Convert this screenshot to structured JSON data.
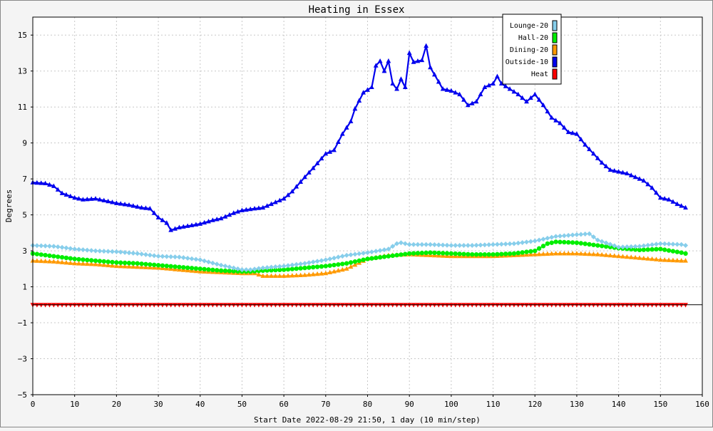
{
  "chart_data": {
    "type": "line",
    "title": "Heating in Essex",
    "xlabel": "Start Date 2022-08-29 21:50, 1 day (10 min/step)",
    "ylabel": "Degrees",
    "xlim": [
      0,
      160
    ],
    "ylim": [
      -5,
      16
    ],
    "x_ticks": [
      0,
      10,
      20,
      30,
      40,
      50,
      60,
      70,
      80,
      90,
      100,
      110,
      120,
      130,
      140,
      150,
      160
    ],
    "y_ticks": [
      -5,
      -3,
      -1,
      1,
      3,
      5,
      7,
      9,
      11,
      13,
      15
    ],
    "x_tick_labels": [
      "0",
      "10",
      "20",
      "30",
      "40",
      "50",
      "60",
      "70",
      "80",
      "90",
      "100",
      "110",
      "120",
      "130",
      "140",
      "150",
      "160"
    ],
    "y_tick_labels": [
      "−5",
      "−3",
      "−1",
      "1",
      "3",
      "5",
      "7",
      "9",
      "11",
      "13",
      "15"
    ],
    "grid": true,
    "legend_position": "top-right",
    "series": [
      {
        "name": "Lounge-20",
        "color": "#87ceeb",
        "marker": "diamond",
        "x": [
          0,
          5,
          10,
          15,
          20,
          25,
          30,
          35,
          40,
          45,
          50,
          52,
          55,
          60,
          65,
          70,
          75,
          80,
          85,
          87,
          88,
          90,
          95,
          100,
          105,
          110,
          115,
          120,
          124,
          125,
          130,
          133,
          135,
          140,
          145,
          150,
          155,
          156
        ],
        "y": [
          3.3,
          3.25,
          3.1,
          3.0,
          2.95,
          2.85,
          2.7,
          2.65,
          2.5,
          2.2,
          1.95,
          1.95,
          2.05,
          2.15,
          2.3,
          2.5,
          2.75,
          2.9,
          3.1,
          3.4,
          3.45,
          3.35,
          3.35,
          3.3,
          3.3,
          3.35,
          3.4,
          3.55,
          3.75,
          3.8,
          3.9,
          3.95,
          3.6,
          3.2,
          3.25,
          3.4,
          3.35,
          3.3
        ]
      },
      {
        "name": "Hall-20",
        "color": "#00ee00",
        "marker": "circle",
        "x": [
          0,
          5,
          10,
          15,
          20,
          25,
          30,
          35,
          40,
          45,
          50,
          52,
          55,
          60,
          65,
          70,
          75,
          80,
          85,
          90,
          95,
          100,
          105,
          110,
          115,
          120,
          123,
          125,
          130,
          135,
          140,
          145,
          150,
          155,
          156
        ],
        "y": [
          2.85,
          2.7,
          2.55,
          2.45,
          2.35,
          2.3,
          2.2,
          2.1,
          2.0,
          1.9,
          1.85,
          1.85,
          1.9,
          1.95,
          2.05,
          2.15,
          2.3,
          2.55,
          2.7,
          2.85,
          2.9,
          2.85,
          2.8,
          2.8,
          2.85,
          3.0,
          3.4,
          3.5,
          3.45,
          3.3,
          3.15,
          3.05,
          3.1,
          2.9,
          2.85
        ]
      },
      {
        "name": "Dining-20",
        "color": "#ff9900",
        "marker": "triangle",
        "x": [
          0,
          5,
          10,
          15,
          20,
          25,
          30,
          35,
          40,
          45,
          50,
          53,
          55,
          60,
          65,
          70,
          75,
          80,
          85,
          90,
          95,
          100,
          105,
          110,
          115,
          120,
          125,
          130,
          135,
          140,
          145,
          150,
          155,
          156
        ],
        "y": [
          2.45,
          2.4,
          2.3,
          2.25,
          2.15,
          2.1,
          2.05,
          1.95,
          1.85,
          1.8,
          1.75,
          1.75,
          1.6,
          1.6,
          1.65,
          1.75,
          2.0,
          2.55,
          2.75,
          2.8,
          2.75,
          2.7,
          2.7,
          2.7,
          2.75,
          2.8,
          2.85,
          2.85,
          2.8,
          2.7,
          2.6,
          2.5,
          2.45,
          2.45
        ]
      },
      {
        "name": "Outside-10",
        "color": "#0000ee",
        "marker": "triangle",
        "x": [
          0,
          3,
          5,
          7,
          10,
          12,
          15,
          18,
          20,
          23,
          26,
          28,
          30,
          32,
          33,
          35,
          40,
          43,
          45,
          48,
          50,
          53,
          55,
          57,
          60,
          62,
          65,
          67,
          70,
          72,
          74,
          76,
          77,
          79,
          81,
          82,
          83,
          84,
          85,
          86,
          87,
          88,
          89,
          90,
          91,
          93,
          94,
          95,
          96,
          98,
          100,
          102,
          104,
          106,
          108,
          110,
          111,
          112,
          114,
          116,
          118,
          120,
          122,
          124,
          126,
          128,
          130,
          132,
          134,
          136,
          138,
          140,
          142,
          144,
          146,
          148,
          150,
          152,
          154,
          156
        ],
        "y": [
          6.8,
          6.75,
          6.6,
          6.2,
          5.95,
          5.85,
          5.9,
          5.75,
          5.65,
          5.55,
          5.4,
          5.35,
          4.85,
          4.55,
          4.15,
          4.3,
          4.5,
          4.7,
          4.8,
          5.1,
          5.25,
          5.35,
          5.4,
          5.6,
          5.9,
          6.3,
          7.1,
          7.6,
          8.4,
          8.6,
          9.5,
          10.2,
          10.9,
          11.8,
          12.1,
          13.3,
          13.55,
          13.0,
          13.55,
          12.3,
          12.0,
          12.55,
          12.1,
          14.0,
          13.5,
          13.6,
          14.4,
          13.2,
          12.8,
          12.0,
          11.9,
          11.7,
          11.1,
          11.3,
          12.1,
          12.3,
          12.7,
          12.3,
          12.0,
          11.7,
          11.3,
          11.7,
          11.1,
          10.4,
          10.1,
          9.6,
          9.5,
          8.9,
          8.4,
          7.9,
          7.5,
          7.4,
          7.3,
          7.1,
          6.9,
          6.5,
          5.95,
          5.85,
          5.6,
          5.4
        ]
      },
      {
        "name": "Heat",
        "color": "#ff0000",
        "marker": "triangle-down",
        "x": [
          0,
          156
        ],
        "y": [
          0,
          0
        ]
      }
    ]
  }
}
